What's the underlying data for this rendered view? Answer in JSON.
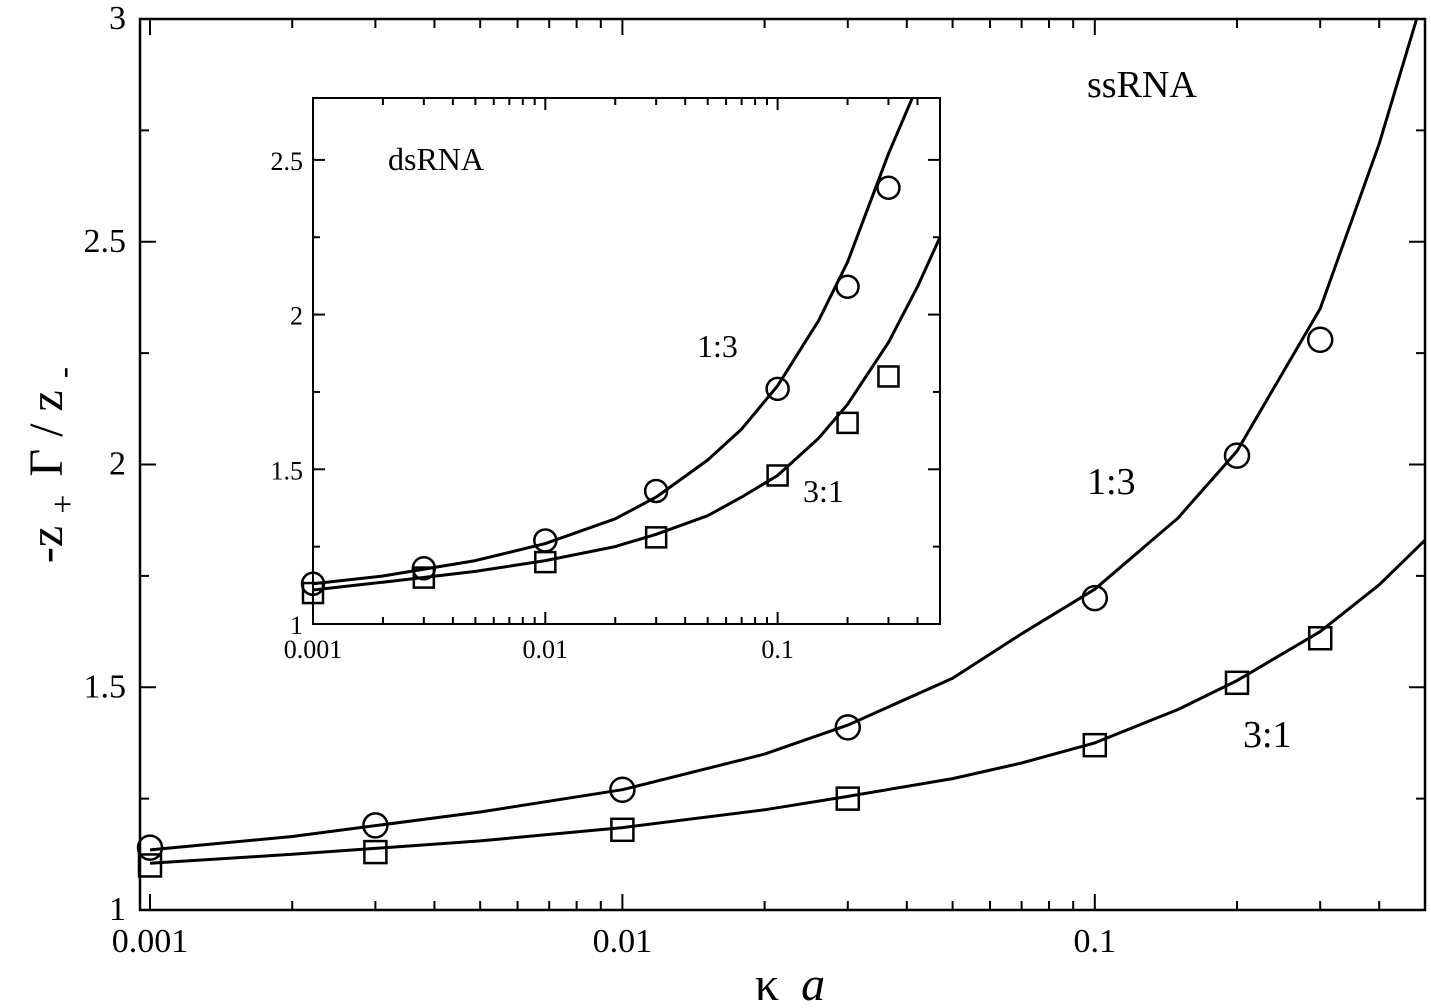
{
  "chart_data": [
    {
      "type": "scatter",
      "panel": "main",
      "annotation_title": "ssRNA",
      "xlabel_parts": {
        "kappa": "κ",
        "a": "a"
      },
      "ylabel_parts": {
        "minus": "-z",
        "plus_sub": "+",
        "gamma": "Γ",
        "slash": " / z",
        "minus_sub": "-"
      },
      "xscale": "log",
      "xlim": [
        0.001,
        0.5
      ],
      "ylim": [
        1,
        3
      ],
      "xticks": [
        {
          "value": 0.001,
          "label": "0.001"
        },
        {
          "value": 0.01,
          "label": "0.01"
        },
        {
          "value": 0.1,
          "label": "0.1"
        }
      ],
      "yticks": [
        {
          "value": 1,
          "label": "1"
        },
        {
          "value": 1.5,
          "label": "1.5"
        },
        {
          "value": 2,
          "label": "2"
        },
        {
          "value": 2.5,
          "label": "2.5"
        },
        {
          "value": 3,
          "label": "3"
        }
      ],
      "series": [
        {
          "name": "1:3",
          "marker": "circle",
          "points": [
            [
              0.001,
              1.14
            ],
            [
              0.003,
              1.19
            ],
            [
              0.01,
              1.27
            ],
            [
              0.03,
              1.41
            ],
            [
              0.1,
              1.7
            ],
            [
              0.2,
              2.02
            ],
            [
              0.3,
              2.28
            ]
          ],
          "curve": [
            [
              0.001,
              1.135
            ],
            [
              0.002,
              1.165
            ],
            [
              0.005,
              1.22
            ],
            [
              0.01,
              1.27
            ],
            [
              0.02,
              1.35
            ],
            [
              0.03,
              1.415
            ],
            [
              0.05,
              1.52
            ],
            [
              0.07,
              1.62
            ],
            [
              0.1,
              1.72
            ],
            [
              0.15,
              1.88
            ],
            [
              0.2,
              2.03
            ],
            [
              0.3,
              2.35
            ],
            [
              0.4,
              2.72
            ],
            [
              0.48,
              3.0
            ]
          ]
        },
        {
          "name": "3:1",
          "marker": "square",
          "points": [
            [
              0.001,
              1.1
            ],
            [
              0.003,
              1.13
            ],
            [
              0.01,
              1.18
            ],
            [
              0.03,
              1.25
            ],
            [
              0.1,
              1.37
            ],
            [
              0.2,
              1.51
            ],
            [
              0.3,
              1.61
            ]
          ],
          "curve": [
            [
              0.001,
              1.105
            ],
            [
              0.002,
              1.125
            ],
            [
              0.005,
              1.155
            ],
            [
              0.01,
              1.185
            ],
            [
              0.02,
              1.225
            ],
            [
              0.03,
              1.255
            ],
            [
              0.05,
              1.295
            ],
            [
              0.07,
              1.33
            ],
            [
              0.1,
              1.375
            ],
            [
              0.15,
              1.45
            ],
            [
              0.2,
              1.515
            ],
            [
              0.3,
              1.625
            ],
            [
              0.4,
              1.73
            ],
            [
              0.5,
              1.83
            ]
          ]
        }
      ],
      "annotations": [
        "1:3",
        "3:1"
      ]
    },
    {
      "type": "scatter",
      "panel": "inset",
      "annotation_title": "dsRNA",
      "xscale": "log",
      "xlim": [
        0.001,
        0.5
      ],
      "ylim": [
        1,
        2.7
      ],
      "xticks": [
        {
          "value": 0.001,
          "label": "0.001"
        },
        {
          "value": 0.01,
          "label": "0.01"
        },
        {
          "value": 0.1,
          "label": "0.1"
        }
      ],
      "yticks": [
        {
          "value": 1,
          "label": "1"
        },
        {
          "value": 1.5,
          "label": "1.5"
        },
        {
          "value": 2,
          "label": "2"
        },
        {
          "value": 2.5,
          "label": "2.5"
        }
      ],
      "series": [
        {
          "name": "1:3",
          "marker": "circle",
          "points": [
            [
              0.001,
              1.13
            ],
            [
              0.003,
              1.18
            ],
            [
              0.01,
              1.27
            ],
            [
              0.03,
              1.43
            ],
            [
              0.1,
              1.76
            ],
            [
              0.2,
              2.09
            ],
            [
              0.3,
              2.41
            ]
          ],
          "curve": [
            [
              0.001,
              1.13
            ],
            [
              0.002,
              1.155
            ],
            [
              0.005,
              1.205
            ],
            [
              0.01,
              1.26
            ],
            [
              0.02,
              1.34
            ],
            [
              0.03,
              1.41
            ],
            [
              0.05,
              1.53
            ],
            [
              0.07,
              1.63
            ],
            [
              0.1,
              1.77
            ],
            [
              0.15,
              1.98
            ],
            [
              0.2,
              2.17
            ],
            [
              0.3,
              2.52
            ],
            [
              0.38,
              2.7
            ]
          ]
        },
        {
          "name": "3:1",
          "marker": "square",
          "points": [
            [
              0.001,
              1.1
            ],
            [
              0.003,
              1.15
            ],
            [
              0.01,
              1.2
            ],
            [
              0.03,
              1.28
            ],
            [
              0.1,
              1.48
            ],
            [
              0.2,
              1.65
            ],
            [
              0.3,
              1.8
            ]
          ],
          "curve": [
            [
              0.001,
              1.11
            ],
            [
              0.002,
              1.135
            ],
            [
              0.005,
              1.17
            ],
            [
              0.01,
              1.205
            ],
            [
              0.02,
              1.25
            ],
            [
              0.03,
              1.29
            ],
            [
              0.05,
              1.35
            ],
            [
              0.07,
              1.41
            ],
            [
              0.1,
              1.48
            ],
            [
              0.15,
              1.6
            ],
            [
              0.2,
              1.71
            ],
            [
              0.3,
              1.91
            ],
            [
              0.4,
              2.09
            ],
            [
              0.5,
              2.25
            ]
          ]
        }
      ],
      "annotations": [
        "1:3",
        "3:1"
      ]
    }
  ]
}
